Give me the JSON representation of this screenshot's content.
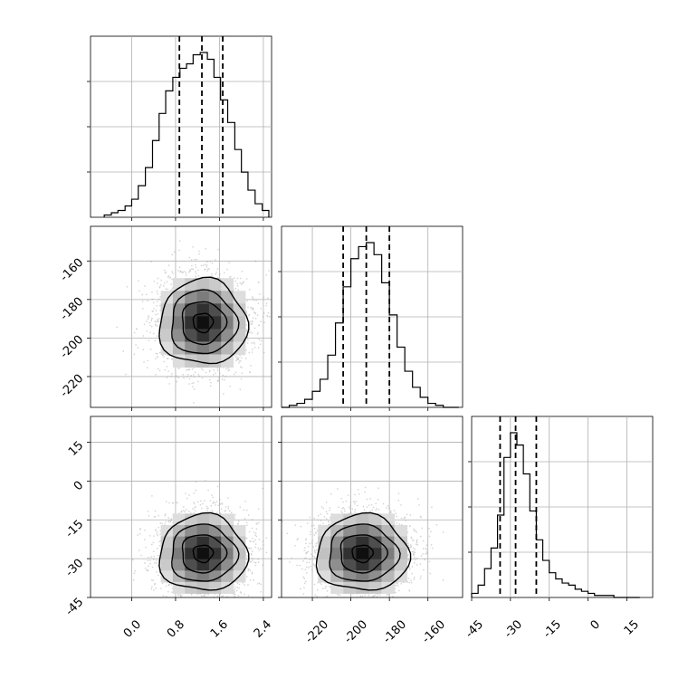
{
  "chart_data": {
    "type": "corner",
    "grid": true,
    "quantile_lines": "dashed",
    "contour_levels": 4,
    "parameters": [
      {
        "ticks": [
          "0.0",
          "0.8",
          "1.6",
          "2.4"
        ],
        "tick_values": [
          0.0,
          0.8,
          1.6,
          2.4
        ],
        "range": [
          -0.75,
          2.55
        ],
        "quantiles": [
          0.87,
          1.28,
          1.66
        ],
        "mean": 1.28,
        "sd": 0.4,
        "hist_bin_edges": [
          -0.5,
          -0.37,
          -0.25,
          -0.12,
          0.0,
          0.12,
          0.25,
          0.38,
          0.5,
          0.62,
          0.75,
          0.88,
          1.0,
          1.12,
          1.25,
          1.38,
          1.5,
          1.62,
          1.75,
          1.88,
          2.0,
          2.12,
          2.25,
          2.38,
          2.5
        ],
        "hist_counts": [
          1,
          2,
          3,
          5,
          8,
          14,
          22,
          34,
          46,
          56,
          62,
          66,
          68,
          72,
          73,
          70,
          62,
          52,
          42,
          30,
          20,
          12,
          6,
          3
        ]
      },
      {
        "ticks": [
          "-160",
          "-180",
          "-200",
          "-220"
        ],
        "tick_values": [
          -160,
          -180,
          -200,
          -220
        ],
        "range": [
          -236,
          -142
        ],
        "quantiles": [
          -204,
          -192,
          -180
        ],
        "mean": -192,
        "sd": 12,
        "hist_bin_edges": [
          -236,
          -232,
          -228,
          -224,
          -220,
          -216,
          -212,
          -208,
          -204,
          -200,
          -196,
          -192,
          -188,
          -184,
          -180,
          -176,
          -172,
          -168,
          -164,
          -160,
          -156,
          -152,
          -148,
          -144
        ],
        "hist_counts": [
          0,
          1,
          2,
          4,
          8,
          14,
          26,
          42,
          60,
          74,
          80,
          82,
          76,
          62,
          46,
          30,
          18,
          10,
          5,
          2,
          1,
          0,
          0
        ]
      },
      {
        "ticks": [
          "-45",
          "-30",
          "-15",
          "0",
          "15"
        ],
        "tick_values": [
          -45,
          -30,
          -15,
          0,
          15
        ],
        "range": [
          -45,
          25
        ],
        "quantiles": [
          -34,
          -28,
          -20
        ],
        "mean": -27,
        "sd": 8,
        "hist_bin_edges": [
          -45,
          -42.5,
          -40,
          -37.5,
          -35,
          -32.5,
          -30,
          -27.5,
          -25,
          -22.5,
          -20,
          -17.5,
          -15,
          -12.5,
          -10,
          -7.5,
          -5,
          -2.5,
          0,
          2.5,
          5,
          7.5,
          10,
          12.5,
          15,
          17.5,
          20
        ],
        "hist_counts": [
          2,
          6,
          14,
          24,
          40,
          68,
          80,
          74,
          60,
          42,
          28,
          18,
          12,
          9,
          7,
          6,
          4,
          3,
          2,
          1,
          1,
          1,
          0,
          0,
          0,
          0
        ]
      }
    ],
    "pairs": [
      {
        "row": 1,
        "col": 0,
        "x_center": 1.3,
        "y_center": -192
      },
      {
        "row": 2,
        "col": 0,
        "x_center": 1.3,
        "y_center": -28
      },
      {
        "row": 2,
        "col": 1,
        "x_center": -194,
        "y_center": -28
      }
    ]
  }
}
